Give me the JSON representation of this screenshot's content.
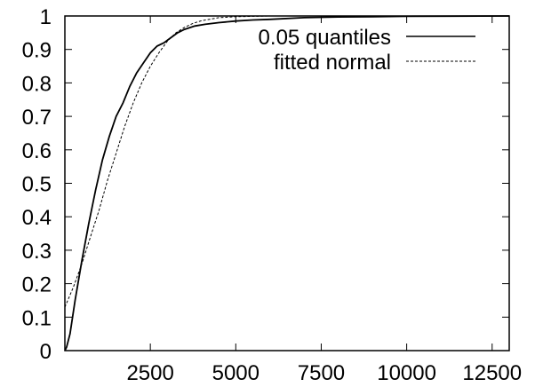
{
  "chart_data": {
    "type": "line",
    "title": "",
    "xlabel": "",
    "ylabel": "",
    "xlim": [
      0,
      13000
    ],
    "ylim": [
      0,
      1
    ],
    "x_ticks": [
      2500,
      5000,
      7500,
      10000,
      12500
    ],
    "x_tick_labels": [
      "2500",
      "5000",
      "7500",
      "10000",
      "12500"
    ],
    "y_ticks": [
      0,
      0.1,
      0.2,
      0.3,
      0.4,
      0.5,
      0.6,
      0.7,
      0.8,
      0.9,
      1
    ],
    "y_tick_labels": [
      "0",
      "0.1",
      "0.2",
      "0.3",
      "0.4",
      "0.5",
      "0.6",
      "0.7",
      "0.8",
      "0.9",
      "1"
    ],
    "grid": false,
    "legend_position": "top-right",
    "series": [
      {
        "name": "0.05 quantiles",
        "style": "solid",
        "color": "#000000",
        "x": [
          0,
          50,
          150,
          300,
          500,
          700,
          900,
          1100,
          1300,
          1500,
          1700,
          1900,
          2100,
          2300,
          2500,
          2700,
          2900,
          3100,
          3300,
          3500,
          3800,
          4100,
          4500,
          5000,
          5500,
          6000,
          7000,
          8000,
          9000,
          10000,
          13000
        ],
        "y": [
          0,
          0.01,
          0.05,
          0.15,
          0.27,
          0.38,
          0.48,
          0.57,
          0.64,
          0.7,
          0.74,
          0.79,
          0.83,
          0.86,
          0.89,
          0.91,
          0.92,
          0.935,
          0.95,
          0.96,
          0.97,
          0.975,
          0.98,
          0.985,
          0.988,
          0.99,
          0.995,
          0.997,
          0.998,
          0.999,
          1.0
        ]
      },
      {
        "name": "fitted normal",
        "style": "dashed",
        "color": "#000000",
        "x": [
          0,
          250,
          500,
          750,
          1000,
          1250,
          1500,
          1750,
          2000,
          2250,
          2500,
          2750,
          3000,
          3250,
          3500,
          3750,
          4000,
          4500,
          5000,
          6000,
          13000
        ],
        "y": [
          0.13,
          0.19,
          0.26,
          0.34,
          0.42,
          0.51,
          0.59,
          0.67,
          0.74,
          0.8,
          0.85,
          0.89,
          0.925,
          0.95,
          0.966,
          0.978,
          0.986,
          0.995,
          0.998,
          1.0,
          1.0
        ]
      }
    ]
  }
}
